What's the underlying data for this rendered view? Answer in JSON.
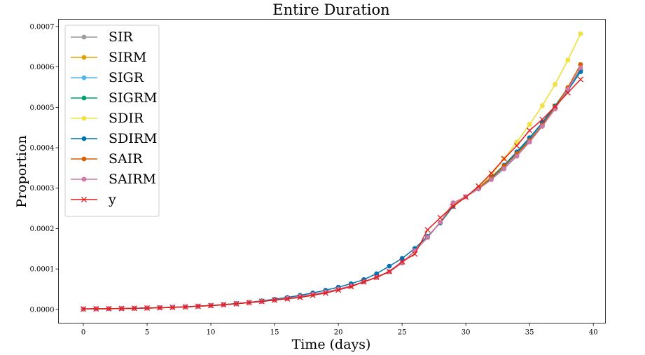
{
  "chart_data": {
    "type": "line",
    "title": "Entire Duration",
    "xlabel": "Time (days)",
    "ylabel": "Proportion",
    "xlim": [
      -1.95,
      40.95
    ],
    "ylim": [
      -3.4e-05,
      0.000718
    ],
    "xticks": [
      0,
      5,
      10,
      15,
      20,
      25,
      30,
      35,
      40
    ],
    "xtick_labels": [
      "0",
      "5",
      "10",
      "15",
      "20",
      "25",
      "30",
      "35",
      "40"
    ],
    "yticks": [
      0,
      0.0001,
      0.0002,
      0.0003,
      0.0004,
      0.0005,
      0.0006,
      0.0007
    ],
    "ytick_labels": [
      "0.0000",
      "0.0001",
      "0.0002",
      "0.0003",
      "0.0004",
      "0.0005",
      "0.0006",
      "0.0007"
    ],
    "grid": false,
    "legend_position": "upper-left",
    "x": [
      0,
      1,
      2,
      3,
      4,
      5,
      6,
      7,
      8,
      9,
      10,
      11,
      12,
      13,
      14,
      15,
      16,
      17,
      18,
      19,
      20,
      21,
      22,
      23,
      24,
      25,
      26,
      27,
      28,
      29,
      30,
      31,
      32,
      33,
      34,
      35,
      36,
      37,
      38,
      39
    ],
    "series": [
      {
        "name": "SIR",
        "color": "#999999",
        "marker": "circle",
        "values": [
          1e-06,
          1.5e-06,
          1.8e-06,
          2.2e-06,
          2.7e-06,
          3.3e-06,
          4.1e-06,
          5e-06,
          6.2e-06,
          7.7e-06,
          9.5e-06,
          1.15e-05,
          1.4e-05,
          1.68e-05,
          1.98e-05,
          2.32e-05,
          2.72e-05,
          3.18e-05,
          3.7e-05,
          4.3e-05,
          5e-05,
          5.8e-05,
          6.8e-05,
          7.9e-05,
          9.3e-05,
          0.000115,
          0.000145,
          0.000178,
          0.000216,
          0.000258,
          0.000279,
          0.000298,
          0.000322,
          0.000349,
          0.000381,
          0.000416,
          0.000457,
          0.000499,
          0.000544,
          0.000592
        ]
      },
      {
        "name": "SIRM",
        "color": "#E69F00",
        "marker": "circle",
        "values": [
          1e-06,
          1.5e-06,
          1.8e-06,
          2.2e-06,
          2.7e-06,
          3.3e-06,
          4.1e-06,
          5e-06,
          6.2e-06,
          7.7e-06,
          9.5e-06,
          1.15e-05,
          1.4e-05,
          1.68e-05,
          1.98e-05,
          2.32e-05,
          2.72e-05,
          3.18e-05,
          3.7e-05,
          4.3e-05,
          5e-05,
          5.8e-05,
          6.8e-05,
          7.9e-05,
          9.3e-05,
          0.000115,
          0.000145,
          0.000178,
          0.000216,
          0.000258,
          0.000279,
          0.000301,
          0.000332,
          0.000373,
          0.000414,
          0.000458,
          0.000504,
          0.000557,
          0.000617,
          0.000682
        ]
      },
      {
        "name": "SIGR",
        "color": "#56B4E9",
        "marker": "circle",
        "values": [
          1e-06,
          1.5e-06,
          1.8e-06,
          2.2e-06,
          2.7e-06,
          3.3e-06,
          4.1e-06,
          5e-06,
          6.2e-06,
          7.7e-06,
          9.5e-06,
          1.15e-05,
          1.4e-05,
          1.68e-05,
          1.98e-05,
          2.32e-05,
          2.72e-05,
          3.18e-05,
          3.7e-05,
          4.3e-05,
          5e-05,
          5.8e-05,
          6.8e-05,
          7.9e-05,
          9.3e-05,
          0.000115,
          0.000145,
          0.000178,
          0.000216,
          0.000258,
          0.000279,
          0.000298,
          0.000323,
          0.000352,
          0.000385,
          0.000421,
          0.000461,
          0.000502,
          0.000546,
          0.00059
        ]
      },
      {
        "name": "SIGRM",
        "color": "#009E73",
        "marker": "circle",
        "values": [
          1e-06,
          1.5e-06,
          1.8e-06,
          2.2e-06,
          2.7e-06,
          3.3e-06,
          4.1e-06,
          5e-06,
          6.2e-06,
          7.7e-06,
          9.5e-06,
          1.15e-05,
          1.4e-05,
          1.68e-05,
          1.98e-05,
          2.32e-05,
          2.72e-05,
          3.18e-05,
          3.7e-05,
          4.3e-05,
          5e-05,
          5.8e-05,
          6.8e-05,
          7.9e-05,
          9.3e-05,
          0.000115,
          0.000145,
          0.000178,
          0.000216,
          0.000258,
          0.000279,
          0.000298,
          0.000324,
          0.000354,
          0.000387,
          0.000423,
          0.000463,
          0.000504,
          0.000548,
          0.000592
        ]
      },
      {
        "name": "SDIR",
        "color": "#F0E442",
        "marker": "circle",
        "values": [
          1e-06,
          1.5e-06,
          1.8e-06,
          2.2e-06,
          2.7e-06,
          3.3e-06,
          4.1e-06,
          5e-06,
          6.2e-06,
          7.7e-06,
          9.5e-06,
          1.15e-05,
          1.4e-05,
          1.68e-05,
          1.98e-05,
          2.32e-05,
          2.72e-05,
          3.18e-05,
          3.7e-05,
          4.3e-05,
          5e-05,
          5.8e-05,
          6.8e-05,
          7.9e-05,
          9.3e-05,
          0.000115,
          0.000145,
          0.000178,
          0.000216,
          0.000258,
          0.000279,
          0.000301,
          0.000332,
          0.000373,
          0.000414,
          0.000458,
          0.000504,
          0.000557,
          0.000617,
          0.000682
        ]
      },
      {
        "name": "SDIRM",
        "color": "#0072B2",
        "marker": "circle",
        "values": [
          1e-06,
          1.6e-06,
          1.9e-06,
          2.3e-06,
          2.9e-06,
          3.6e-06,
          4.4e-06,
          5.4e-06,
          6.6e-06,
          8.1e-06,
          9.9e-06,
          1.2e-05,
          1.46e-05,
          1.76e-05,
          2.11e-05,
          2.51e-05,
          2.97e-05,
          3.49e-05,
          4.08e-05,
          4.75e-05,
          5.5e-05,
          6.36e-05,
          7.38e-05,
          8.84e-05,
          0.000107,
          0.000126,
          0.000151,
          0.000181,
          0.000214,
          0.000255,
          0.000279,
          0.0003,
          0.000327,
          0.000357,
          0.00039,
          0.000425,
          0.000462,
          0.000501,
          0.000542,
          0.000588
        ]
      },
      {
        "name": "SAIR",
        "color": "#D55E00",
        "marker": "circle",
        "values": [
          1e-06,
          1.5e-06,
          1.8e-06,
          2.2e-06,
          2.7e-06,
          3.3e-06,
          4.1e-06,
          5e-06,
          6.2e-06,
          7.7e-06,
          9.5e-06,
          1.15e-05,
          1.4e-05,
          1.68e-05,
          1.98e-05,
          2.32e-05,
          2.72e-05,
          3.18e-05,
          3.7e-05,
          4.3e-05,
          5e-05,
          5.8e-05,
          6.8e-05,
          7.9e-05,
          9.3e-05,
          0.000115,
          0.000145,
          0.000178,
          0.000216,
          0.000258,
          0.000279,
          0.0003,
          0.000326,
          0.000355,
          0.000385,
          0.000418,
          0.000456,
          0.0005,
          0.000549,
          0.000606
        ]
      },
      {
        "name": "SAIRM",
        "color": "#CC79A7",
        "marker": "circle",
        "values": [
          1e-06,
          1.5e-06,
          1.8e-06,
          2.2e-06,
          2.7e-06,
          3.3e-06,
          4.1e-06,
          5e-06,
          6.2e-06,
          7.7e-06,
          9.5e-06,
          1.15e-05,
          1.4e-05,
          1.68e-05,
          1.98e-05,
          2.32e-05,
          2.72e-05,
          3.18e-05,
          3.7e-05,
          4.3e-05,
          5e-05,
          5.8e-05,
          6.8e-05,
          7.9e-05,
          9.3e-05,
          0.000115,
          0.000145,
          0.000178,
          0.000216,
          0.000264,
          0.000279,
          0.000298,
          0.000321,
          0.000348,
          0.000379,
          0.000414,
          0.000453,
          0.000496,
          0.000545,
          0.000598
        ]
      },
      {
        "name": "y",
        "color": "#E41A1C",
        "marker": "x",
        "values": [
          1e-06,
          1.5e-06,
          1.8e-06,
          2.2e-06,
          2.7e-06,
          3.3e-06,
          4.1e-06,
          5e-06,
          6.2e-06,
          7.7e-06,
          9.5e-06,
          1.15e-05,
          1.4e-05,
          1.68e-05,
          1.98e-05,
          2.32e-05,
          2.62e-05,
          2.97e-05,
          3.49e-05,
          4.05e-05,
          4.8e-05,
          5.65e-05,
          6.83e-05,
          7.98e-05,
          9.4e-05,
          0.000118,
          0.000137,
          0.000197,
          0.000227,
          0.000255,
          0.000278,
          0.000305,
          0.000337,
          0.000373,
          0.000405,
          0.000443,
          0.00047,
          0.000502,
          0.000536,
          0.000569
        ]
      }
    ]
  }
}
